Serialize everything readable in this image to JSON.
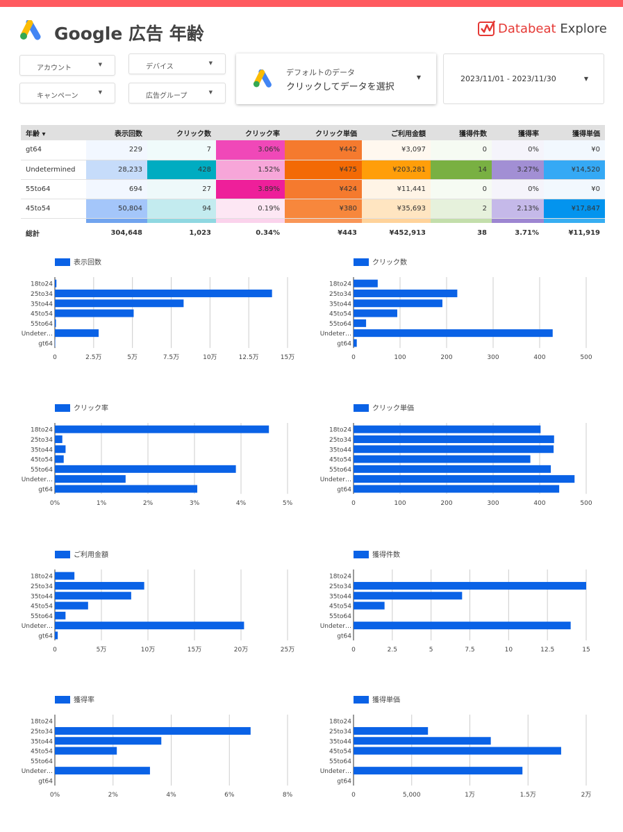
{
  "header": {
    "title": "Google 広告 年齢",
    "brand_name": "Databeat",
    "brand_sub": "Explore",
    "accent_color": "#ff5a5f"
  },
  "filters": {
    "account": "アカウント",
    "device": "デバイス",
    "campaign": "キャンペーン",
    "ad_group": "広告グループ"
  },
  "data_source": {
    "line1": "デフォルトのデータ",
    "line2": "クリックしてデータを選択"
  },
  "date_range": "2023/11/01 - 2023/11/30",
  "table": {
    "columns": [
      "年齢 ▾",
      "表示回数",
      "クリック数",
      "クリック率",
      "クリック単価",
      "ご利用金額",
      "獲得件数",
      "獲得率",
      "獲得単価"
    ],
    "rows": [
      [
        "gt64",
        "229",
        "7",
        "3.06%",
        "¥442",
        "¥3,097",
        "0",
        "0%",
        "¥0"
      ],
      [
        "Undetermined",
        "28,233",
        "428",
        "1.52%",
        "¥475",
        "¥203,281",
        "14",
        "3.27%",
        "¥14,520"
      ],
      [
        "55to64",
        "694",
        "27",
        "3.89%",
        "¥424",
        "¥11,441",
        "0",
        "0%",
        "¥0"
      ],
      [
        "45to54",
        "50,804",
        "94",
        "0.19%",
        "¥380",
        "¥35,693",
        "2",
        "2.13%",
        "¥17,847"
      ]
    ],
    "cell_colors": [
      [
        "#fff",
        "#f2f7ff",
        "#f0fbfb",
        "#f048b8",
        "#f57a2e",
        "#fff8ef",
        "#f6fbf3",
        "#f5f4fb",
        "#f2f8fe"
      ],
      [
        "#fff",
        "#c6dcfa",
        "#00acc1",
        "#f7a6d9",
        "#f36a05",
        "#ff9e0a",
        "#79b042",
        "#a28fd4",
        "#35a9f5"
      ],
      [
        "#fff",
        "#f2f7ff",
        "#eef9fa",
        "#ee1f9a",
        "#f57a2e",
        "#fff4e6",
        "#f6fbf3",
        "#f5f4fb",
        "#f2f8fe"
      ],
      [
        "#fff",
        "#a4c6fa",
        "#c3ebef",
        "#fde7f4",
        "#f7873c",
        "#ffe5c1",
        "#e6f1dc",
        "#c5b9e9",
        "#0394ee"
      ]
    ],
    "gap_colors": [
      "#fff",
      "#71a4ef",
      "#8fd8e1",
      "#fbd3ec",
      "#f99657",
      "#ffd39a",
      "#c3deab",
      "#9d86d2",
      "#37aef2"
    ],
    "total": [
      "総計",
      "304,648",
      "1,023",
      "0.34%",
      "¥443",
      "¥452,913",
      "38",
      "3.71%",
      "¥11,919"
    ]
  },
  "chart_data": [
    {
      "type": "bar",
      "title": "表示回数",
      "categories": [
        "18to24",
        "25to34",
        "35to44",
        "45to54",
        "55to64",
        "Undeter…",
        "gt64"
      ],
      "values": [
        1000,
        140000,
        83000,
        50804,
        694,
        28233,
        229
      ],
      "ticks": [
        0,
        25000,
        50000,
        75000,
        100000,
        125000,
        150000
      ],
      "tick_labels": [
        "0",
        "2.5万",
        "5万",
        "7.5万",
        "10万",
        "12.5万",
        "15万"
      ],
      "xlim": [
        0,
        150000
      ],
      "grid": true,
      "color": "#0a62e6"
    },
    {
      "type": "bar",
      "title": "クリック数",
      "categories": [
        "18to24",
        "25to34",
        "35to44",
        "45to54",
        "55to64",
        "Undeter…",
        "gt64"
      ],
      "values": [
        52,
        223,
        191,
        94,
        27,
        428,
        7
      ],
      "ticks": [
        0,
        100,
        200,
        300,
        400,
        500
      ],
      "tick_labels": [
        "0",
        "100",
        "200",
        "300",
        "400",
        "500"
      ],
      "xlim": [
        0,
        500
      ],
      "grid": true,
      "color": "#0a62e6"
    },
    {
      "type": "bar",
      "title": "クリック率",
      "categories": [
        "18to24",
        "25to34",
        "35to44",
        "45to54",
        "55to64",
        "Undeter…",
        "gt64"
      ],
      "values": [
        4.6,
        0.16,
        0.23,
        0.19,
        3.89,
        1.52,
        3.06
      ],
      "ticks": [
        0,
        1,
        2,
        3,
        4,
        5
      ],
      "tick_labels": [
        "0%",
        "1%",
        "2%",
        "3%",
        "4%",
        "5%"
      ],
      "xlim": [
        0,
        5
      ],
      "grid": true,
      "color": "#0a62e6"
    },
    {
      "type": "bar",
      "title": "クリック単価",
      "categories": [
        "18to24",
        "25to34",
        "35to44",
        "45to54",
        "55to64",
        "Undeter…",
        "gt64"
      ],
      "values": [
        402,
        431,
        430,
        380,
        424,
        475,
        442
      ],
      "ticks": [
        0,
        100,
        200,
        300,
        400,
        500
      ],
      "tick_labels": [
        "0",
        "100",
        "200",
        "300",
        "400",
        "500"
      ],
      "xlim": [
        0,
        500
      ],
      "grid": true,
      "color": "#0a62e6"
    },
    {
      "type": "bar",
      "title": "ご利用金額",
      "categories": [
        "18to24",
        "25to34",
        "35to44",
        "45to54",
        "55to64",
        "Undeter…",
        "gt64"
      ],
      "values": [
        21000,
        96000,
        82000,
        35693,
        11441,
        203281,
        3097
      ],
      "ticks": [
        0,
        50000,
        100000,
        150000,
        200000,
        250000
      ],
      "tick_labels": [
        "0",
        "5万",
        "10万",
        "15万",
        "20万",
        "25万"
      ],
      "xlim": [
        0,
        250000
      ],
      "grid": true,
      "color": "#0a62e6"
    },
    {
      "type": "bar",
      "title": "獲得件数",
      "categories": [
        "18to24",
        "25to34",
        "35to44",
        "45to54",
        "55to64",
        "Undeter…",
        "gt64"
      ],
      "values": [
        0,
        15,
        7,
        2,
        0,
        14,
        0
      ],
      "ticks": [
        0,
        2.5,
        5,
        7.5,
        10,
        12.5,
        15
      ],
      "tick_labels": [
        "0",
        "2.5",
        "5",
        "7.5",
        "10",
        "12.5",
        "15"
      ],
      "xlim": [
        0,
        15
      ],
      "grid": true,
      "color": "#0a62e6"
    },
    {
      "type": "bar",
      "title": "獲得率",
      "categories": [
        "18to24",
        "25to34",
        "35to44",
        "45to54",
        "55to64",
        "Undeter…",
        "gt64"
      ],
      "values": [
        0,
        6.73,
        3.66,
        2.13,
        0,
        3.27,
        0
      ],
      "ticks": [
        0,
        2,
        4,
        6,
        8
      ],
      "tick_labels": [
        "0%",
        "2%",
        "4%",
        "6%",
        "8%"
      ],
      "xlim": [
        0,
        8
      ],
      "grid": true,
      "color": "#0a62e6"
    },
    {
      "type": "bar",
      "title": "獲得単価",
      "categories": [
        "18to24",
        "25to34",
        "35to44",
        "45to54",
        "55to64",
        "Undeter…",
        "gt64"
      ],
      "values": [
        0,
        6400,
        11800,
        17847,
        0,
        14520,
        0
      ],
      "ticks": [
        0,
        5000,
        10000,
        15000,
        20000
      ],
      "tick_labels": [
        "0",
        "5,000",
        "1万",
        "1.5万",
        "2万"
      ],
      "xlim": [
        0,
        20000
      ],
      "grid": true,
      "color": "#0a62e6"
    }
  ]
}
